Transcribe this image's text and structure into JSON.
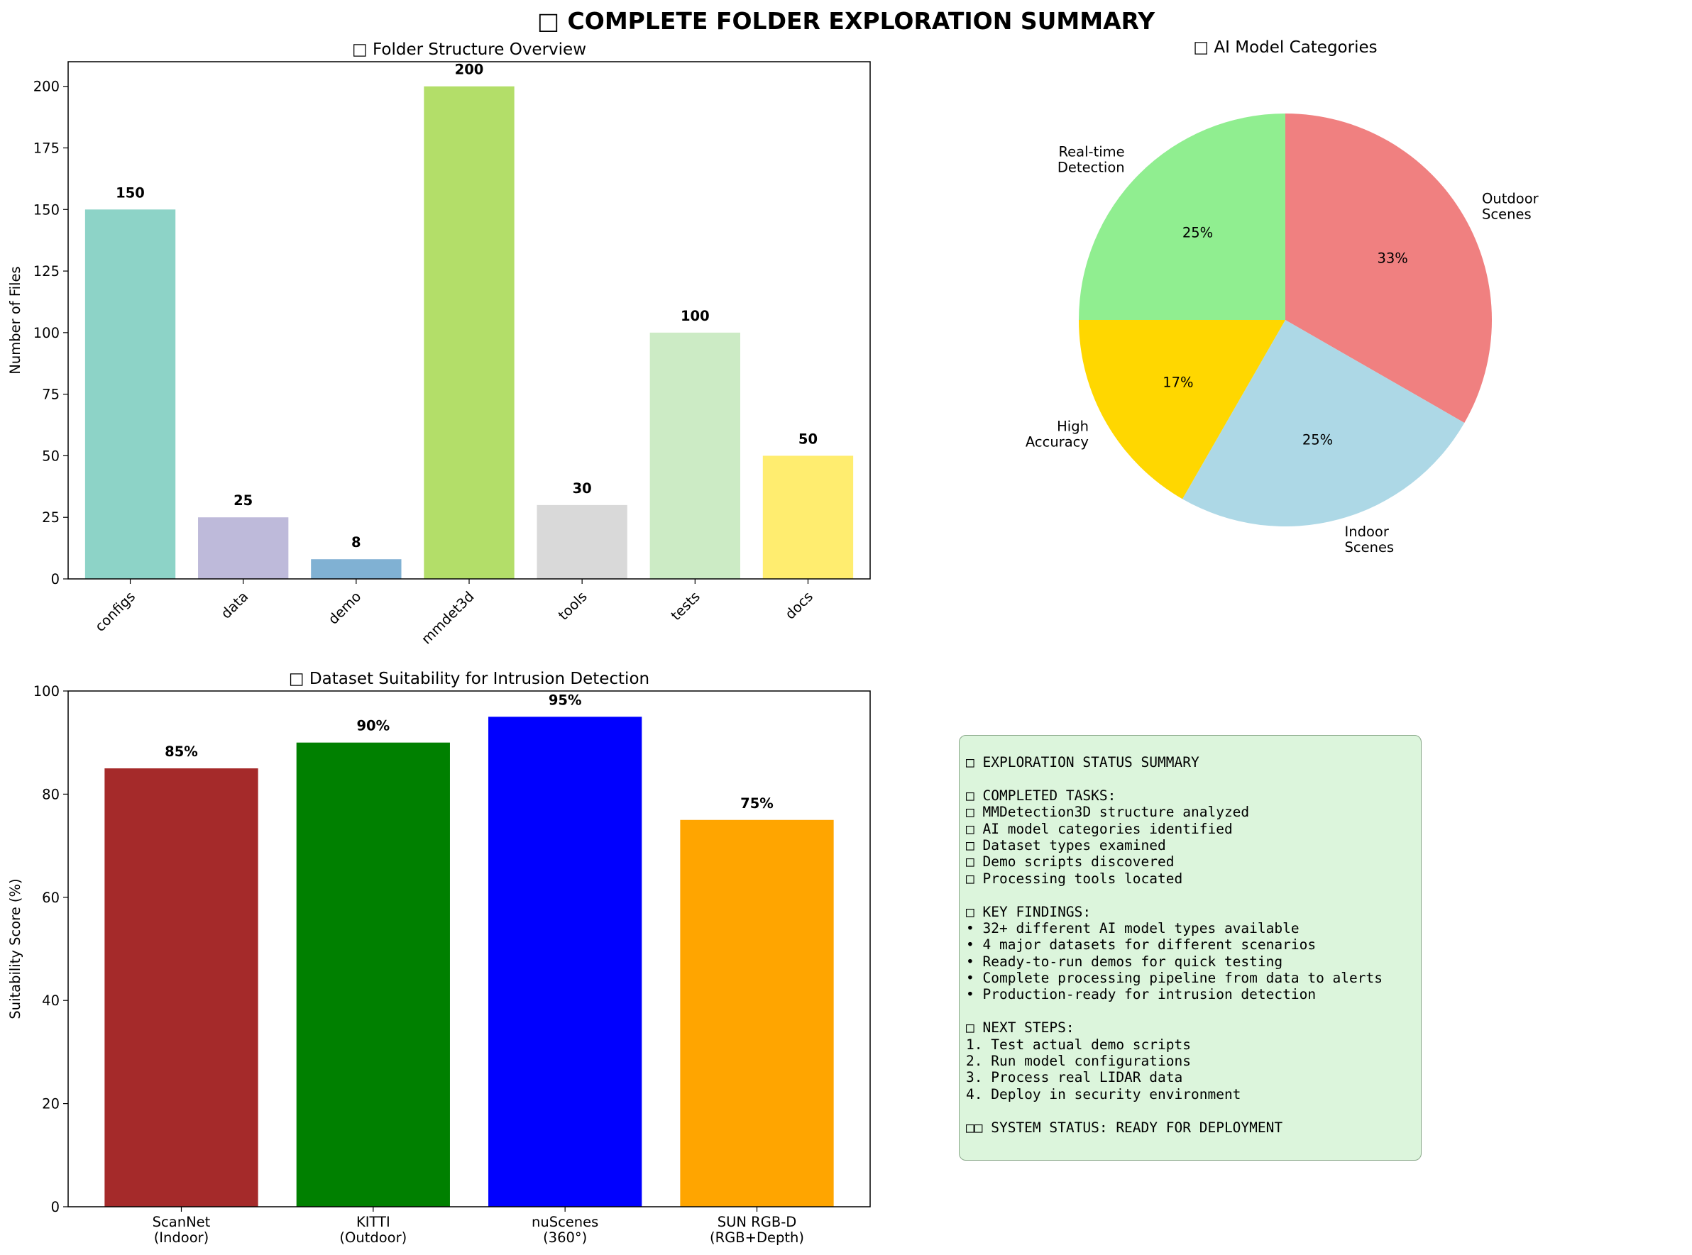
{
  "figure": {
    "suptitle": "□ COMPLETE FOLDER EXPLORATION SUMMARY"
  },
  "chart_data": [
    {
      "type": "bar",
      "title": "□ Folder Structure Overview",
      "xlabel": "",
      "ylabel": "Number of Files",
      "categories": [
        "configs",
        "data",
        "demo",
        "mmdet3d",
        "tools",
        "tests",
        "docs"
      ],
      "values": [
        150,
        25,
        8,
        200,
        30,
        100,
        50
      ],
      "value_labels": [
        "150",
        "25",
        "8",
        "200",
        "30",
        "100",
        "50"
      ],
      "colors": [
        "#8dd3c7",
        "#bebada",
        "#80b1d3",
        "#b3de69",
        "#d9d9d9",
        "#ccebc5",
        "#ffed6f"
      ],
      "ylim": [
        0,
        210
      ],
      "yticks": [
        0,
        25,
        50,
        75,
        100,
        125,
        150,
        175,
        200
      ],
      "tick_rotation": 45,
      "grid": false
    },
    {
      "type": "pie",
      "title": "□ AI Model Categories",
      "labels": [
        "Outdoor\nScenes",
        "Indoor\nScenes",
        "High\nAccuracy",
        "Real-time\nDetection"
      ],
      "values": [
        33.3,
        25,
        16.7,
        25
      ],
      "pct_labels": [
        "33%",
        "25%",
        "17%",
        "25%"
      ],
      "colors": [
        "#f08080",
        "#add8e6",
        "#ffd700",
        "#90ee90"
      ]
    },
    {
      "type": "bar",
      "title": "□ Dataset Suitability for Intrusion Detection",
      "xlabel": "",
      "ylabel": "Suitability Score (%)",
      "categories": [
        "ScanNet\n(Indoor)",
        "KITTI\n(Outdoor)",
        "nuScenes\n(360°)",
        "SUN RGB-D\n(RGB+Depth)"
      ],
      "values": [
        85,
        90,
        95,
        75
      ],
      "value_labels": [
        "85%",
        "90%",
        "95%",
        "75%"
      ],
      "colors": [
        "#a52a2a",
        "#008000",
        "#0000ff",
        "#ffa500"
      ],
      "ylim": [
        0,
        100
      ],
      "yticks": [
        0,
        20,
        40,
        60,
        80,
        100
      ],
      "grid": false
    }
  ],
  "status_summary": {
    "lines": [
      "□ EXPLORATION STATUS SUMMARY",
      "",
      "□ COMPLETED TASKS:",
      "□ MMDetection3D structure analyzed",
      "□ AI model categories identified",
      "□ Dataset types examined",
      "□ Demo scripts discovered",
      "□ Processing tools located",
      "",
      "□ KEY FINDINGS:",
      "• 32+ different AI model types available",
      "• 4 major datasets for different scenarios",
      "• Ready-to-run demos for quick testing",
      "• Complete processing pipeline from data to alerts",
      "• Production-ready for intrusion detection",
      "",
      "□ NEXT STEPS:",
      "1. Test actual demo scripts",
      "2. Run model configurations",
      "3. Process real LIDAR data",
      "4. Deploy in security environment",
      "",
      "□□ SYSTEM STATUS: READY FOR DEPLOYMENT"
    ]
  }
}
